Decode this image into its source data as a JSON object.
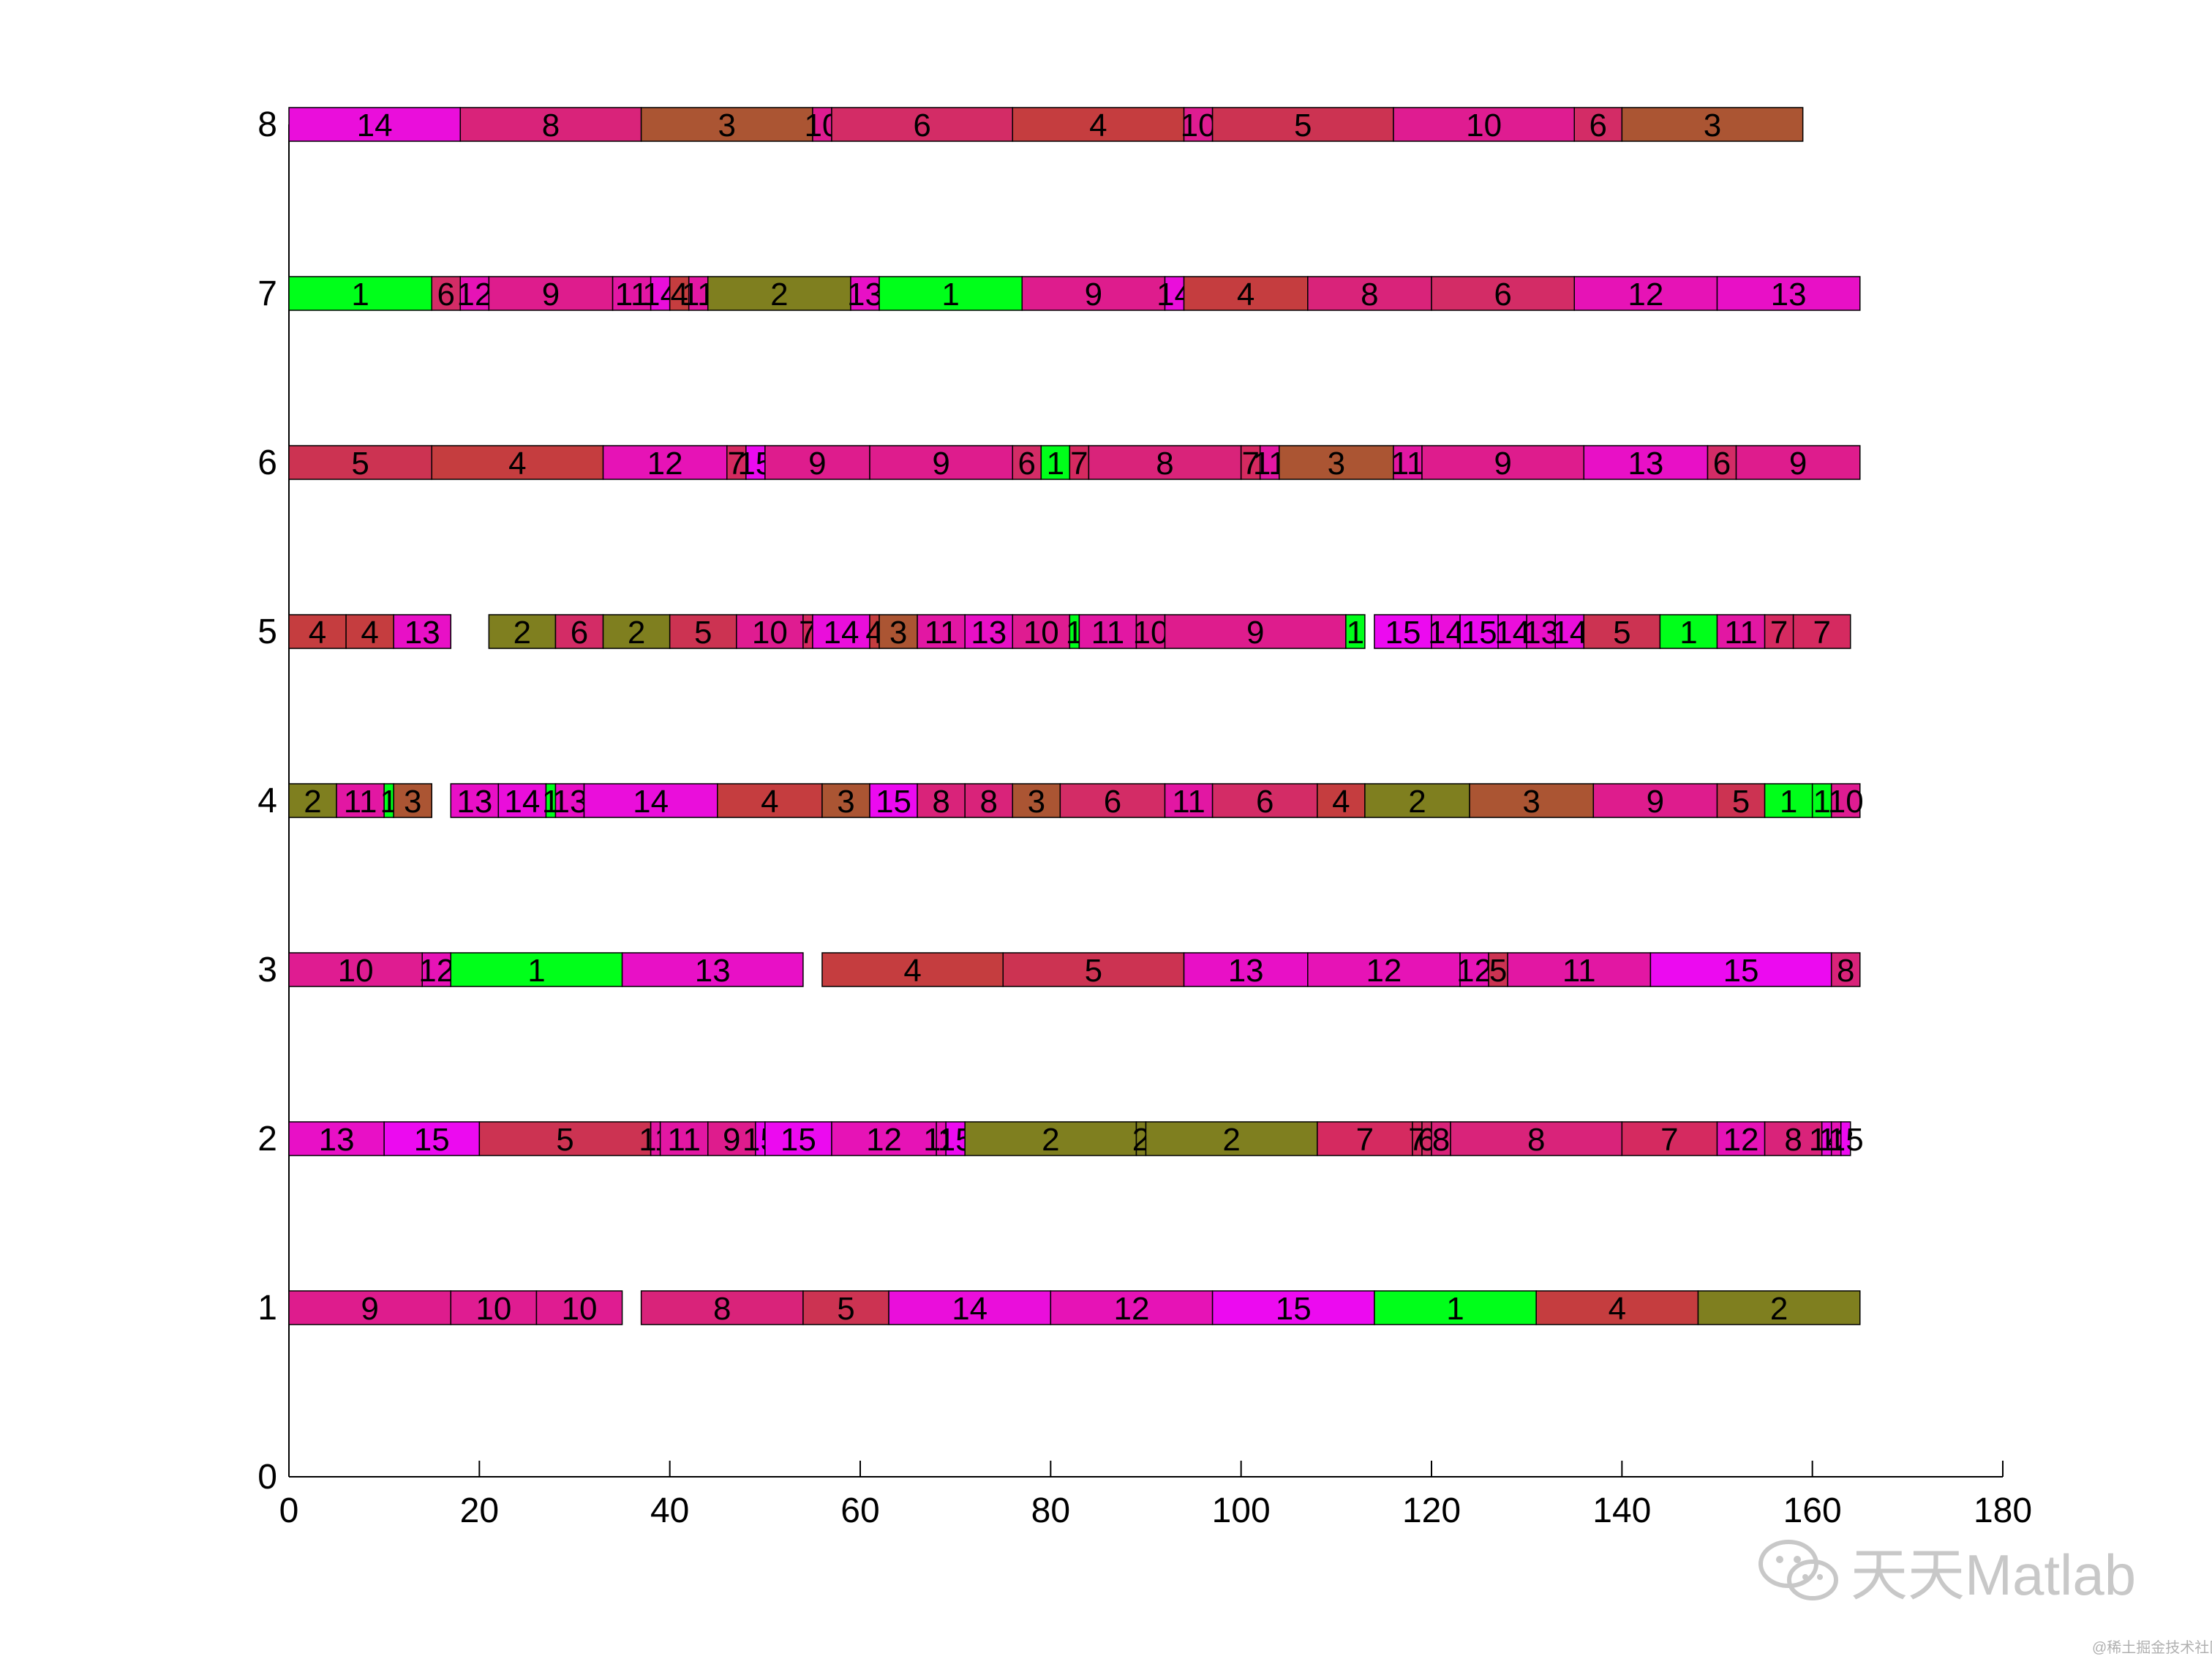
{
  "chart_data": {
    "type": "gantt",
    "title": "",
    "xlabel": "",
    "ylabel": "",
    "xlim": [
      0,
      180
    ],
    "ylim": [
      0,
      8
    ],
    "x_ticks": [
      "0",
      "20",
      "40",
      "60",
      "80",
      "100",
      "120",
      "140",
      "160",
      "180"
    ],
    "y_ticks": [
      "0",
      "1",
      "2",
      "3",
      "4",
      "5",
      "6",
      "7",
      "8"
    ],
    "grid": false,
    "colors": {
      "1": "#00ff1a",
      "2": "#7f7f1f",
      "3": "#ab5533",
      "4": "#c53d3f",
      "5": "#cc3352",
      "6": "#d32c66",
      "7": "#d52a60",
      "8": "#d9237a",
      "9": "#de1c8d",
      "10": "#df1c91",
      "11": "#e217a3",
      "12": "#e613b6",
      "13": "#e810c6",
      "14": "#ea0edb",
      "15": "#ec0af0"
    },
    "rows": [
      {
        "machine": "1",
        "tasks": [
          {
            "job": "9",
            "start": 0,
            "end": 17
          },
          {
            "job": "10",
            "start": 17,
            "end": 26
          },
          {
            "job": "10",
            "start": 26,
            "end": 35
          },
          {
            "job": "8",
            "start": 37,
            "end": 54
          },
          {
            "job": "5",
            "start": 54,
            "end": 63
          },
          {
            "job": "14",
            "start": 63,
            "end": 80
          },
          {
            "job": "12",
            "start": 80,
            "end": 97
          },
          {
            "job": "15",
            "start": 97,
            "end": 114
          },
          {
            "job": "1",
            "start": 114,
            "end": 131
          },
          {
            "job": "4",
            "start": 131,
            "end": 148
          },
          {
            "job": "2",
            "start": 148,
            "end": 165
          }
        ]
      },
      {
        "machine": "2",
        "tasks": [
          {
            "job": "13",
            "start": 0,
            "end": 10
          },
          {
            "job": "15",
            "start": 10,
            "end": 20
          },
          {
            "job": "5",
            "start": 20,
            "end": 38
          },
          {
            "job": "11",
            "start": 38,
            "end": 39
          },
          {
            "job": "11",
            "start": 39,
            "end": 44
          },
          {
            "job": "9",
            "start": 44,
            "end": 49
          },
          {
            "job": "15",
            "start": 49,
            "end": 50
          },
          {
            "job": "15",
            "start": 50,
            "end": 57
          },
          {
            "job": "12",
            "start": 57,
            "end": 68
          },
          {
            "job": "12",
            "start": 68,
            "end": 69
          },
          {
            "job": "15",
            "start": 69,
            "end": 71
          },
          {
            "job": "2",
            "start": 71,
            "end": 89
          },
          {
            "job": "2",
            "start": 89,
            "end": 90
          },
          {
            "job": "2",
            "start": 90,
            "end": 108
          },
          {
            "job": "7",
            "start": 108,
            "end": 118
          },
          {
            "job": "7",
            "start": 118,
            "end": 119
          },
          {
            "job": "6",
            "start": 119,
            "end": 120
          },
          {
            "job": "8",
            "start": 120,
            "end": 122
          },
          {
            "job": "8",
            "start": 122,
            "end": 140
          },
          {
            "job": "7",
            "start": 140,
            "end": 150
          },
          {
            "job": "12",
            "start": 150,
            "end": 155
          },
          {
            "job": "8",
            "start": 155,
            "end": 161
          },
          {
            "job": "14",
            "start": 161,
            "end": 162
          },
          {
            "job": "12",
            "start": 162,
            "end": 163
          },
          {
            "job": "15",
            "start": 163,
            "end": 164
          }
        ]
      },
      {
        "machine": "3",
        "tasks": [
          {
            "job": "10",
            "start": 0,
            "end": 14
          },
          {
            "job": "12",
            "start": 14,
            "end": 17
          },
          {
            "job": "1",
            "start": 17,
            "end": 35
          },
          {
            "job": "13",
            "start": 35,
            "end": 54
          },
          {
            "job": "4",
            "start": 56,
            "end": 75
          },
          {
            "job": "5",
            "start": 75,
            "end": 94
          },
          {
            "job": "13",
            "start": 94,
            "end": 107
          },
          {
            "job": "12",
            "start": 107,
            "end": 123
          },
          {
            "job": "12",
            "start": 123,
            "end": 126
          },
          {
            "job": "5",
            "start": 126,
            "end": 128
          },
          {
            "job": "11",
            "start": 128,
            "end": 143
          },
          {
            "job": "15",
            "start": 143,
            "end": 162
          },
          {
            "job": "8",
            "start": 162,
            "end": 165
          }
        ]
      },
      {
        "machine": "4",
        "tasks": [
          {
            "job": "2",
            "start": 0,
            "end": 5
          },
          {
            "job": "11",
            "start": 5,
            "end": 10
          },
          {
            "job": "1",
            "start": 10,
            "end": 11
          },
          {
            "job": "3",
            "start": 11,
            "end": 15
          },
          {
            "job": "13",
            "start": 17,
            "end": 22
          },
          {
            "job": "14",
            "start": 22,
            "end": 27
          },
          {
            "job": "1",
            "start": 27,
            "end": 28
          },
          {
            "job": "13",
            "start": 28,
            "end": 31
          },
          {
            "job": "14",
            "start": 31,
            "end": 45
          },
          {
            "job": "4",
            "start": 45,
            "end": 56
          },
          {
            "job": "3",
            "start": 56,
            "end": 61
          },
          {
            "job": "15",
            "start": 61,
            "end": 66
          },
          {
            "job": "8",
            "start": 66,
            "end": 71
          },
          {
            "job": "8",
            "start": 71,
            "end": 76
          },
          {
            "job": "3",
            "start": 76,
            "end": 81
          },
          {
            "job": "6",
            "start": 81,
            "end": 92
          },
          {
            "job": "11",
            "start": 92,
            "end": 97
          },
          {
            "job": "6",
            "start": 97,
            "end": 108
          },
          {
            "job": "4",
            "start": 108,
            "end": 113
          },
          {
            "job": "2",
            "start": 113,
            "end": 124
          },
          {
            "job": "3",
            "start": 124,
            "end": 137
          },
          {
            "job": "9",
            "start": 137,
            "end": 150
          },
          {
            "job": "5",
            "start": 150,
            "end": 155
          },
          {
            "job": "1",
            "start": 155,
            "end": 160
          },
          {
            "job": "1",
            "start": 160,
            "end": 162
          },
          {
            "job": "10",
            "start": 162,
            "end": 165
          }
        ]
      },
      {
        "machine": "5",
        "tasks": [
          {
            "job": "4",
            "start": 0,
            "end": 6
          },
          {
            "job": "4",
            "start": 6,
            "end": 11
          },
          {
            "job": "13",
            "start": 11,
            "end": 17
          },
          {
            "job": "2",
            "start": 21,
            "end": 28
          },
          {
            "job": "6",
            "start": 28,
            "end": 33
          },
          {
            "job": "2",
            "start": 33,
            "end": 40
          },
          {
            "job": "5",
            "start": 40,
            "end": 47
          },
          {
            "job": "10",
            "start": 47,
            "end": 54
          },
          {
            "job": "7",
            "start": 54,
            "end": 55
          },
          {
            "job": "14",
            "start": 55,
            "end": 61
          },
          {
            "job": "4",
            "start": 61,
            "end": 62
          },
          {
            "job": "3",
            "start": 62,
            "end": 66
          },
          {
            "job": "11",
            "start": 66,
            "end": 71
          },
          {
            "job": "13",
            "start": 71,
            "end": 76
          },
          {
            "job": "10",
            "start": 76,
            "end": 82
          },
          {
            "job": "1",
            "start": 82,
            "end": 83
          },
          {
            "job": "11",
            "start": 83,
            "end": 89
          },
          {
            "job": "10",
            "start": 89,
            "end": 92
          },
          {
            "job": "9",
            "start": 92,
            "end": 111
          },
          {
            "job": "1",
            "start": 111,
            "end": 113
          },
          {
            "job": "15",
            "start": 114,
            "end": 120
          },
          {
            "job": "14",
            "start": 120,
            "end": 123
          },
          {
            "job": "15",
            "start": 123,
            "end": 127
          },
          {
            "job": "14",
            "start": 127,
            "end": 130
          },
          {
            "job": "13",
            "start": 130,
            "end": 133
          },
          {
            "job": "14",
            "start": 133,
            "end": 136
          },
          {
            "job": "5",
            "start": 136,
            "end": 144
          },
          {
            "job": "1",
            "start": 144,
            "end": 150
          },
          {
            "job": "11",
            "start": 150,
            "end": 155
          },
          {
            "job": "7",
            "start": 155,
            "end": 158
          },
          {
            "job": "7",
            "start": 158,
            "end": 164
          }
        ]
      },
      {
        "machine": "6",
        "tasks": [
          {
            "job": "5",
            "start": 0,
            "end": 15
          },
          {
            "job": "4",
            "start": 15,
            "end": 33
          },
          {
            "job": "12",
            "start": 33,
            "end": 46
          },
          {
            "job": "7",
            "start": 46,
            "end": 48
          },
          {
            "job": "15",
            "start": 48,
            "end": 50
          },
          {
            "job": "9",
            "start": 50,
            "end": 61
          },
          {
            "job": "9",
            "start": 61,
            "end": 76
          },
          {
            "job": "6",
            "start": 76,
            "end": 79
          },
          {
            "job": "1",
            "start": 79,
            "end": 82
          },
          {
            "job": "7",
            "start": 82,
            "end": 84
          },
          {
            "job": "8",
            "start": 84,
            "end": 100
          },
          {
            "job": "7",
            "start": 100,
            "end": 102
          },
          {
            "job": "11",
            "start": 102,
            "end": 104
          },
          {
            "job": "3",
            "start": 104,
            "end": 116
          },
          {
            "job": "11",
            "start": 116,
            "end": 119
          },
          {
            "job": "9",
            "start": 119,
            "end": 136
          },
          {
            "job": "13",
            "start": 136,
            "end": 149
          },
          {
            "job": "6",
            "start": 149,
            "end": 152
          },
          {
            "job": "9",
            "start": 152,
            "end": 165
          }
        ]
      },
      {
        "machine": "7",
        "tasks": [
          {
            "job": "1",
            "start": 0,
            "end": 15
          },
          {
            "job": "6",
            "start": 15,
            "end": 18
          },
          {
            "job": "12",
            "start": 18,
            "end": 21
          },
          {
            "job": "9",
            "start": 21,
            "end": 34
          },
          {
            "job": "11",
            "start": 34,
            "end": 38
          },
          {
            "job": "14",
            "start": 38,
            "end": 40
          },
          {
            "job": "4",
            "start": 40,
            "end": 42
          },
          {
            "job": "11",
            "start": 42,
            "end": 44
          },
          {
            "job": "2",
            "start": 44,
            "end": 59
          },
          {
            "job": "13",
            "start": 59,
            "end": 62
          },
          {
            "job": "1",
            "start": 62,
            "end": 77
          },
          {
            "job": "9",
            "start": 77,
            "end": 92
          },
          {
            "job": "14",
            "start": 92,
            "end": 94
          },
          {
            "job": "4",
            "start": 94,
            "end": 107
          },
          {
            "job": "8",
            "start": 107,
            "end": 120
          },
          {
            "job": "6",
            "start": 120,
            "end": 135
          },
          {
            "job": "12",
            "start": 135,
            "end": 150
          },
          {
            "job": "13",
            "start": 150,
            "end": 165
          }
        ]
      },
      {
        "machine": "8",
        "tasks": [
          {
            "job": "14",
            "start": 0,
            "end": 18
          },
          {
            "job": "8",
            "start": 18,
            "end": 37
          },
          {
            "job": "3",
            "start": 37,
            "end": 55
          },
          {
            "job": "10",
            "start": 55,
            "end": 57
          },
          {
            "job": "6",
            "start": 57,
            "end": 76
          },
          {
            "job": "4",
            "start": 76,
            "end": 94
          },
          {
            "job": "10",
            "start": 94,
            "end": 97
          },
          {
            "job": "5",
            "start": 97,
            "end": 116
          },
          {
            "job": "10",
            "start": 116,
            "end": 135
          },
          {
            "job": "6",
            "start": 135,
            "end": 140
          },
          {
            "job": "3",
            "start": 140,
            "end": 159
          }
        ]
      }
    ]
  },
  "watermark": {
    "text": "天天Matlab",
    "sub": "@稀土掘金技术社区",
    "logo_icon": "wechat-icon"
  }
}
